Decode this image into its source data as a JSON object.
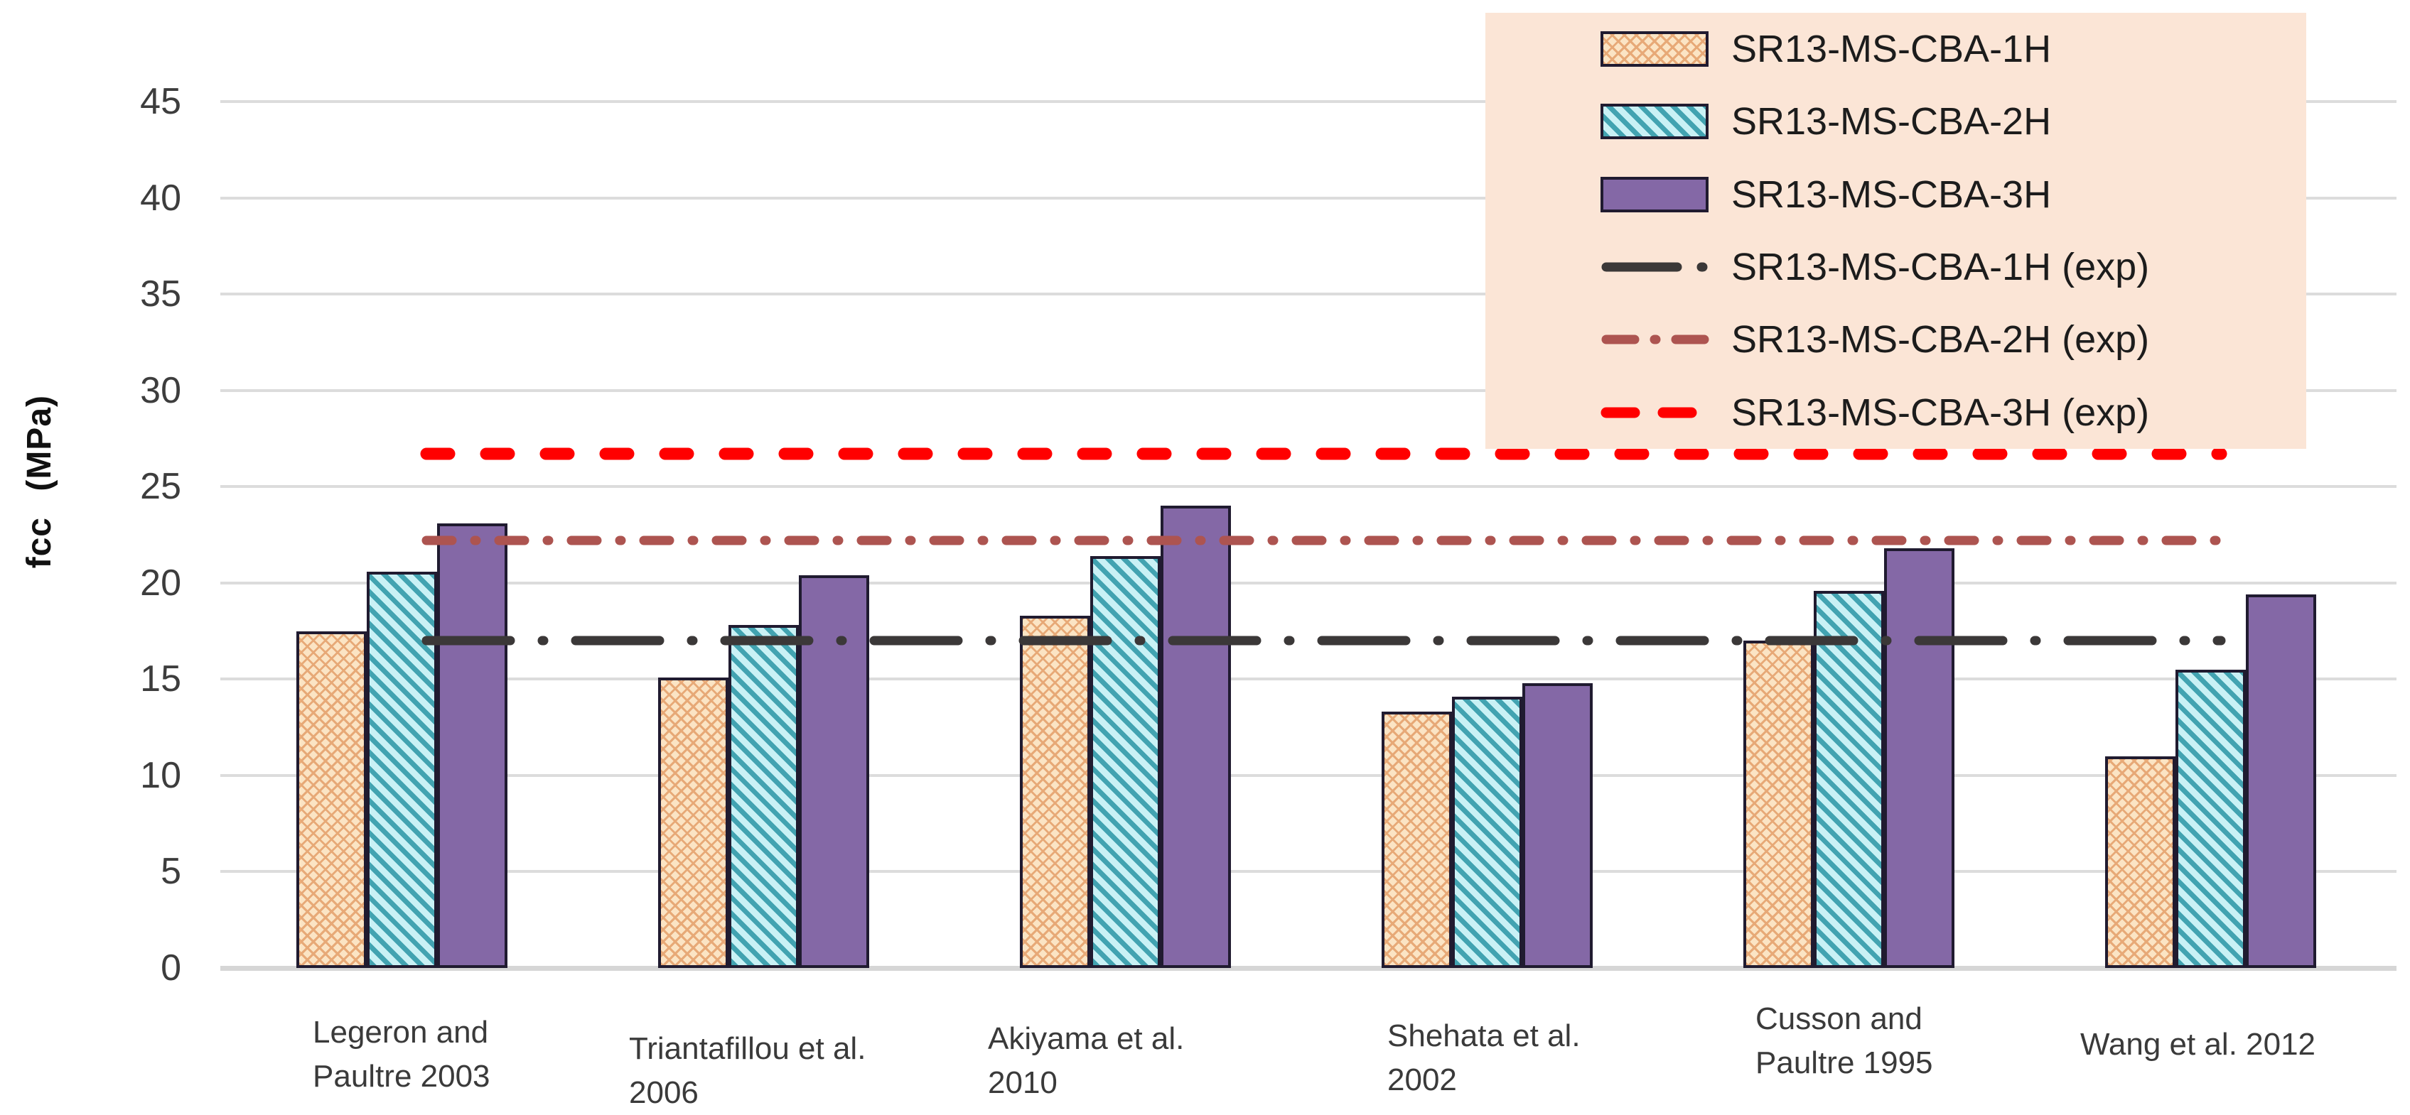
{
  "chart_data": {
    "type": "bar",
    "title": "",
    "xlabel": "",
    "ylabel": "fcc (MPa)",
    "ylim": [
      0,
      45
    ],
    "ytick_step": 5,
    "yticks": [
      "45",
      "40",
      "35",
      "30",
      "25",
      "20",
      "15",
      "10",
      "5",
      "0"
    ],
    "ytick_values": [
      45,
      40,
      35,
      30,
      25,
      20,
      15,
      10,
      5,
      0
    ],
    "grid": true,
    "legend_position": "top-right",
    "categories": [
      [
        "Legeron and",
        "Paultre 2003"
      ],
      [
        "Triantafillou et al.",
        "2006"
      ],
      [
        "Akiyama et al.",
        "2010"
      ],
      [
        "Shehata et al.",
        "2002"
      ],
      [
        "Cusson and",
        "Paultre 1995"
      ],
      [
        "Wang et al. 2012"
      ]
    ],
    "series": [
      {
        "name": "SR13-MS-CBA-1H",
        "kind": "bar",
        "pattern": "diamond-crosshatch",
        "fill": "#fbe4c4",
        "hatch_color": "#e7a977",
        "values": [
          17.5,
          15.1,
          18.3,
          13.3,
          17.0,
          11.0
        ]
      },
      {
        "name": "SR13-MS-CBA-2H",
        "kind": "bar",
        "pattern": "diagonal-stripes",
        "fill": "#c9f1f5",
        "hatch_color": "#42a3b1",
        "values": [
          20.6,
          17.8,
          21.4,
          14.1,
          19.6,
          15.5
        ]
      },
      {
        "name": "SR13-MS-CBA-3H",
        "kind": "bar",
        "pattern": "solid",
        "fill": "#8468a6",
        "values": [
          23.1,
          20.4,
          24.0,
          14.8,
          21.8,
          19.4
        ]
      },
      {
        "name": "SR13-MS-CBA-1H (exp)",
        "kind": "line",
        "style": "long-dash-dot",
        "color": "#3b3838",
        "value": 17.0
      },
      {
        "name": "SR13-MS-CBA-2H (exp)",
        "kind": "line",
        "style": "dash-dot",
        "color": "#ad5450",
        "value": 22.2
      },
      {
        "name": "SR13-MS-CBA-3H (exp)",
        "kind": "line",
        "style": "dash",
        "color": "#ff0000",
        "value": 26.7
      }
    ]
  },
  "legend": {
    "background_color": "#fbe5d6"
  }
}
